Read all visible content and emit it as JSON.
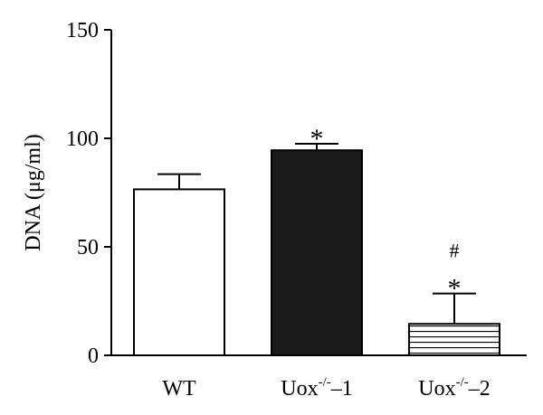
{
  "chart_data": {
    "type": "bar",
    "ylabel": "DNA (μg/ml)",
    "ylim": [
      0,
      150
    ],
    "yticks": [
      0,
      50,
      100,
      150
    ],
    "grid": false,
    "categories": [
      {
        "base": "WT",
        "sup": "",
        "suffix": ""
      },
      {
        "base": "Uox",
        "sup": "-/-",
        "suffix": "–1"
      },
      {
        "base": "Uox",
        "sup": "-/-",
        "suffix": "–2"
      }
    ],
    "values": [
      76.5,
      94.5,
      14.5
    ],
    "errors": [
      7,
      3,
      14
    ],
    "fills": [
      "white",
      "black",
      "hatched"
    ],
    "annotations": [
      [],
      [
        "*"
      ],
      [
        "#",
        "*"
      ]
    ]
  }
}
